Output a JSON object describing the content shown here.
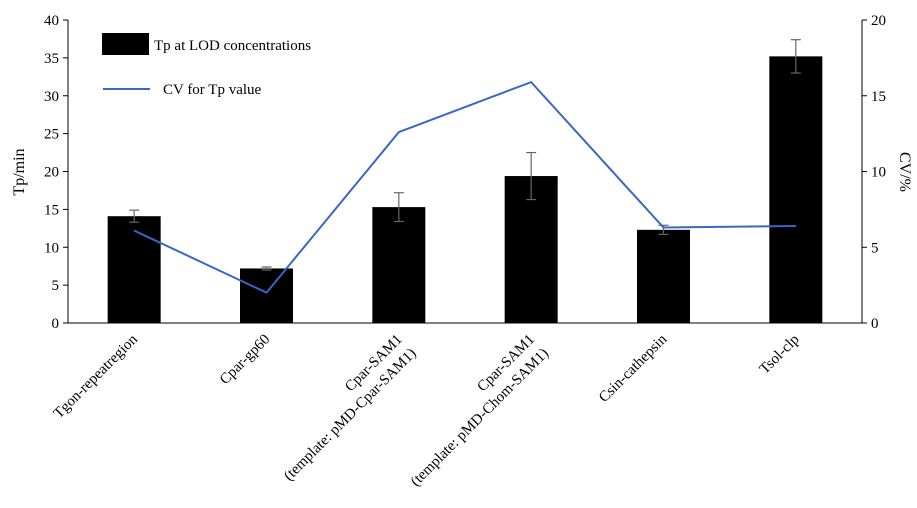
{
  "chart_data": {
    "type": "bar",
    "categories": [
      [
        "Tgon-repeatregion"
      ],
      [
        "Cpar-gp60"
      ],
      [
        "Cpar-SAM1",
        "(template: pMD-Cpar-SAM1)"
      ],
      [
        "Cpar-SAM1",
        "(template: pMD-Chom-SAM1)"
      ],
      [
        "Csin-cathepsin"
      ],
      [
        "Tsol-clp"
      ]
    ],
    "series": [
      {
        "name": "Tp at LOD concentrations",
        "kind": "bar",
        "axis": "left",
        "color": "#000000",
        "values": [
          14.1,
          7.2,
          15.3,
          19.4,
          12.3,
          35.2
        ],
        "error": [
          0.8,
          0.2,
          1.9,
          3.1,
          0.6,
          2.2
        ]
      },
      {
        "name": "CV for  Tp value",
        "kind": "line",
        "axis": "right",
        "color": "#3a66c4",
        "values": [
          6.1,
          2.0,
          12.6,
          15.9,
          6.3,
          6.4
        ]
      }
    ],
    "ylabel": "Tp/min",
    "y2label": "CV/%",
    "ylim": [
      0,
      40
    ],
    "y2lim": [
      0,
      20
    ],
    "yticks": [
      0,
      5,
      10,
      15,
      20,
      25,
      30,
      35,
      40
    ],
    "y2ticks": [
      0,
      5,
      10,
      15,
      20
    ],
    "legend_position": "top-left",
    "grid": false
  }
}
